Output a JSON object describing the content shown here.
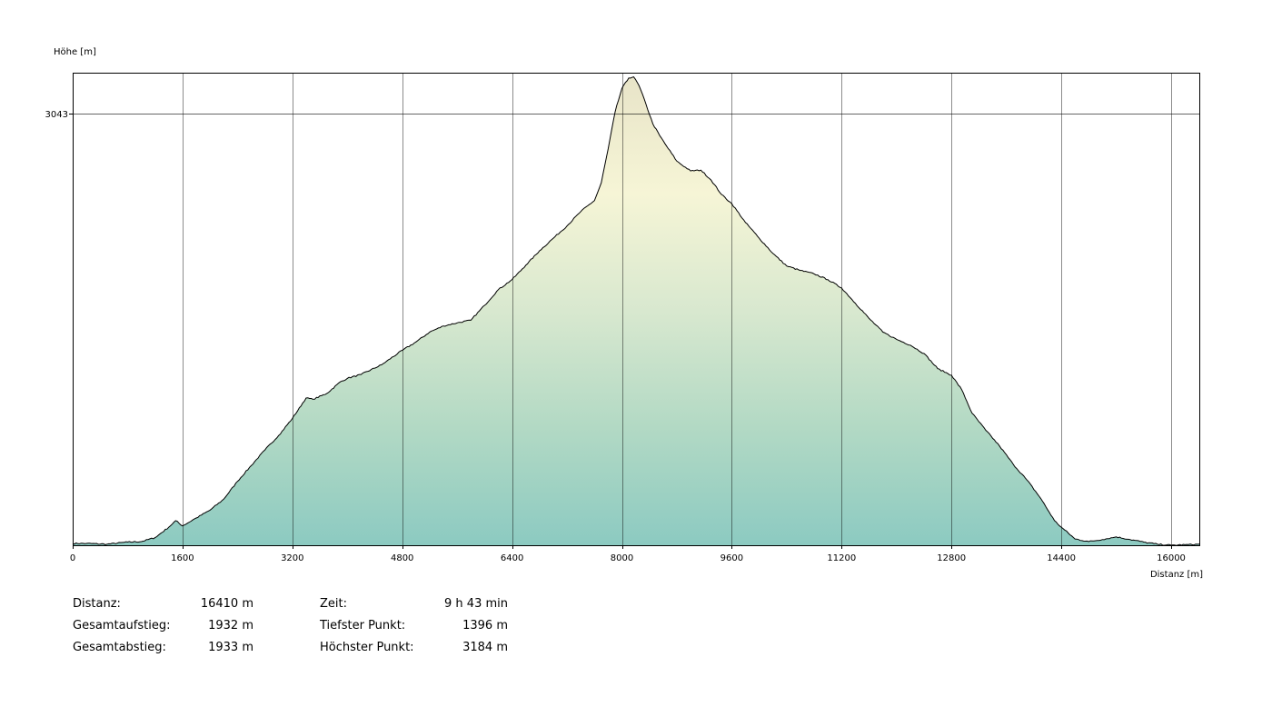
{
  "chart_data": {
    "type": "area",
    "ylabel": "Höhe [m]",
    "xlabel": "Distanz [m]",
    "xlim": [
      0,
      16410
    ],
    "ylim": [
      1396,
      3200
    ],
    "x_ticks": [
      0,
      1600,
      3200,
      4800,
      6400,
      8000,
      9600,
      11200,
      12800,
      14400,
      16000
    ],
    "y_ticks": [
      3043
    ],
    "grid": true,
    "fill_gradient": [
      "#e8e4c8",
      "#f6f5d6",
      "#d8e8cf",
      "#b2d9c4",
      "#8ccac1"
    ],
    "line_color": "#000000",
    "x": [
      0,
      200,
      500,
      800,
      1000,
      1200,
      1400,
      1500,
      1600,
      1800,
      2000,
      2200,
      2400,
      2600,
      2800,
      3000,
      3200,
      3400,
      3500,
      3700,
      3900,
      4000,
      4200,
      4500,
      4800,
      5000,
      5200,
      5400,
      5600,
      5800,
      6000,
      6200,
      6400,
      6600,
      6800,
      7000,
      7200,
      7400,
      7600,
      7700,
      7800,
      7900,
      8000,
      8100,
      8170,
      8250,
      8350,
      8450,
      8550,
      8650,
      8800,
      9000,
      9150,
      9300,
      9450,
      9600,
      9800,
      10000,
      10200,
      10400,
      10600,
      10800,
      11000,
      11200,
      11400,
      11600,
      11800,
      12000,
      12200,
      12400,
      12600,
      12800,
      12950,
      13100,
      13300,
      13500,
      13700,
      13900,
      14100,
      14300,
      14400,
      14600,
      14800,
      15000,
      15200,
      15400,
      15600,
      15800,
      16000,
      16200,
      16410
    ],
    "values": [
      1403,
      1403,
      1400,
      1408,
      1410,
      1425,
      1465,
      1490,
      1470,
      1500,
      1530,
      1572,
      1640,
      1700,
      1760,
      1815,
      1880,
      1958,
      1953,
      1975,
      2020,
      2033,
      2048,
      2085,
      2140,
      2172,
      2210,
      2233,
      2245,
      2255,
      2312,
      2372,
      2410,
      2465,
      2520,
      2568,
      2615,
      2670,
      2712,
      2780,
      2910,
      3050,
      3140,
      3180,
      3184,
      3150,
      3080,
      3005,
      2960,
      2920,
      2862,
      2825,
      2828,
      2790,
      2735,
      2700,
      2628,
      2568,
      2510,
      2462,
      2445,
      2432,
      2410,
      2378,
      2320,
      2262,
      2210,
      2182,
      2160,
      2128,
      2070,
      2045,
      1990,
      1900,
      1835,
      1775,
      1705,
      1645,
      1575,
      1490,
      1465,
      1420,
      1410,
      1418,
      1428,
      1418,
      1408,
      1400,
      1396,
      1398,
      1400
    ]
  },
  "stats": {
    "distanz_label": "Distanz:",
    "distanz_value": "16410 m",
    "aufstieg_label": "Gesamtaufstieg:",
    "aufstieg_value": "1932 m",
    "abstieg_label": "Gesamtabstieg:",
    "abstieg_value": "1933 m",
    "zeit_label": "Zeit:",
    "zeit_value": "9 h 43 min",
    "tief_label": "Tiefster Punkt:",
    "tief_value": "1396 m",
    "hoch_label": "Höchster Punkt:",
    "hoch_value": "3184 m"
  }
}
